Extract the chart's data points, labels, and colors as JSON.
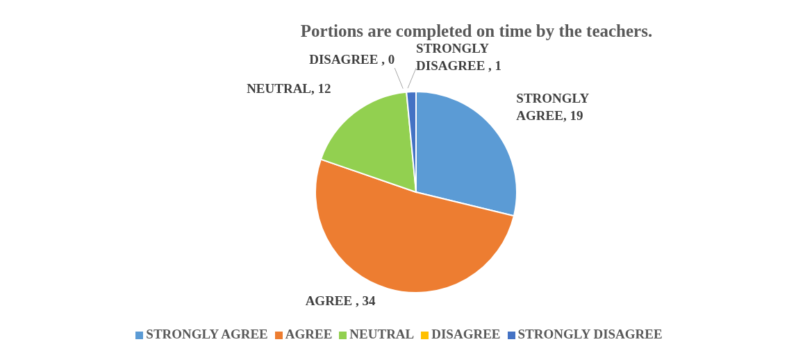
{
  "chart_data": {
    "type": "pie",
    "title": "Portions are completed on time by the teachers.",
    "categories": [
      "STRONGLY AGREE",
      "AGREE",
      "NEUTRAL",
      "DISAGREE",
      "STRONGLY DISAGREE"
    ],
    "values": [
      19,
      34,
      12,
      0,
      1
    ],
    "colors": [
      "#5b9bd5",
      "#ed7d31",
      "#92d050",
      "#ffc000",
      "#4472c4"
    ],
    "value_labels": [
      "STRONGLY AGREE, 19",
      "AGREE   , 34",
      "NEUTRAL, 12",
      "DISAGREE , 0",
      "STRONGLY DISAGREE , 1"
    ],
    "legend": "bottom"
  }
}
